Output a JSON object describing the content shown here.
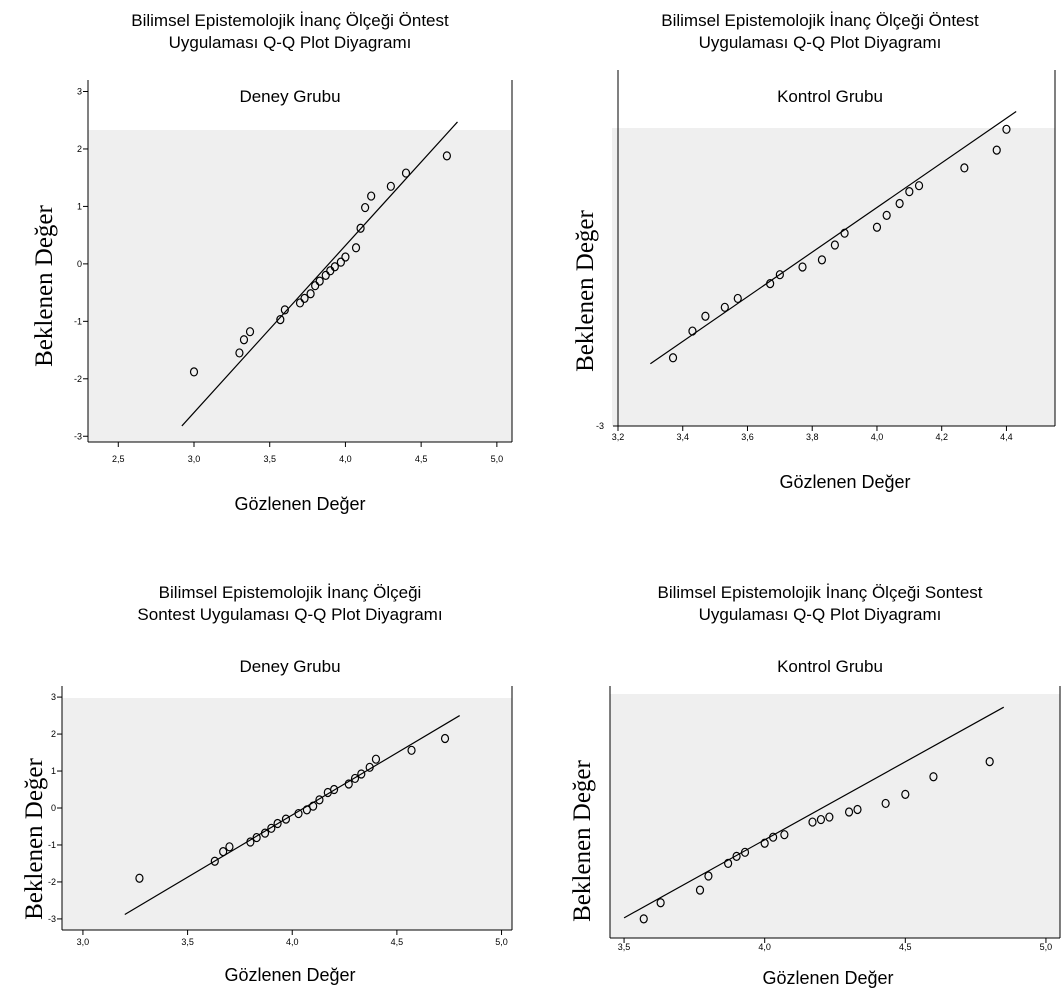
{
  "chart_data": [
    {
      "type": "scatter",
      "title_line1": "Bilimsel Epistemolojik İnanç Ölçeği Öntest",
      "title_line2": "Uygulaması Q-Q Plot Diyagramı",
      "group": "Deney Grubu",
      "xlabel": "Gözlenen Değer",
      "ylabel": "Beklenen Değer",
      "xlim": [
        2.3,
        5.1
      ],
      "ylim": [
        -3.1,
        3.2
      ],
      "xticks": [
        "2,5",
        "3,0",
        "3,5",
        "4,0",
        "4,5",
        "5,0"
      ],
      "xtick_values": [
        2.5,
        3.0,
        3.5,
        4.0,
        4.5,
        5.0
      ],
      "yticks": [
        "3",
        "2",
        "1",
        "0",
        "-1",
        "-2",
        "-3"
      ],
      "ytick_values": [
        3,
        2,
        1,
        0,
        -1,
        -2,
        -3
      ],
      "line": [
        [
          2.92,
          -2.82
        ],
        [
          4.74,
          2.47
        ]
      ],
      "points": [
        [
          3.0,
          -1.88
        ],
        [
          3.3,
          -1.55
        ],
        [
          3.33,
          -1.32
        ],
        [
          3.37,
          -1.18
        ],
        [
          3.57,
          -0.97
        ],
        [
          3.6,
          -0.8
        ],
        [
          3.7,
          -0.68
        ],
        [
          3.73,
          -0.6
        ],
        [
          3.77,
          -0.52
        ],
        [
          3.8,
          -0.38
        ],
        [
          3.83,
          -0.3
        ],
        [
          3.87,
          -0.2
        ],
        [
          3.9,
          -0.12
        ],
        [
          3.93,
          -0.05
        ],
        [
          3.97,
          0.03
        ],
        [
          4.0,
          0.12
        ],
        [
          4.07,
          0.28
        ],
        [
          4.1,
          0.62
        ],
        [
          4.13,
          0.98
        ],
        [
          4.17,
          1.18
        ],
        [
          4.3,
          1.35
        ],
        [
          4.4,
          1.58
        ],
        [
          4.67,
          1.88
        ]
      ]
    },
    {
      "type": "scatter",
      "title_line1": "Bilimsel Epistemolojik İnanç Ölçeği Öntest",
      "title_line2": "Uygulaması Q-Q Plot Diyagramı",
      "group": "Kontrol Grubu",
      "xlabel": "Gözlenen Değer",
      "ylabel": "Beklenen Değer",
      "xlim": [
        3.2,
        4.55
      ],
      "ylim": [
        -3.0,
        3.0
      ],
      "xticks": [
        "3,2",
        "3,4",
        "3,6",
        "3,8",
        "4,0",
        "4,2",
        "4,4"
      ],
      "xtick_values": [
        3.2,
        3.4,
        3.6,
        3.8,
        4.0,
        4.2,
        4.4
      ],
      "yticks": [
        "-3"
      ],
      "ytick_values": [
        -3
      ],
      "line": [
        [
          3.3,
          -1.95
        ],
        [
          4.43,
          2.3
        ]
      ],
      "points": [
        [
          3.37,
          -1.85
        ],
        [
          3.43,
          -1.4
        ],
        [
          3.47,
          -1.15
        ],
        [
          3.53,
          -1.0
        ],
        [
          3.57,
          -0.85
        ],
        [
          3.67,
          -0.6
        ],
        [
          3.7,
          -0.45
        ],
        [
          3.77,
          -0.32
        ],
        [
          3.83,
          -0.2
        ],
        [
          3.87,
          0.05
        ],
        [
          3.9,
          0.25
        ],
        [
          4.0,
          0.35
        ],
        [
          4.03,
          0.55
        ],
        [
          4.07,
          0.75
        ],
        [
          4.1,
          0.95
        ],
        [
          4.13,
          1.05
        ],
        [
          4.27,
          1.35
        ],
        [
          4.37,
          1.65
        ],
        [
          4.4,
          2.0
        ]
      ]
    },
    {
      "type": "scatter",
      "title_line1": "Bilimsel Epistemolojik İnanç Ölçeği",
      "title_line2": "Sontest Uygulaması Q-Q Plot Diyagramı",
      "group": "Deney Grubu",
      "xlabel": "Gözlenen Değer",
      "ylabel": "Beklenen Değer",
      "xlim": [
        2.9,
        5.05
      ],
      "ylim": [
        -3.3,
        3.3
      ],
      "xticks": [
        "3,0",
        "3,5",
        "4,0",
        "4,5",
        "5,0"
      ],
      "xtick_values": [
        3.0,
        3.5,
        4.0,
        4.5,
        5.0
      ],
      "yticks": [
        "3",
        "2",
        "1",
        "0",
        "-1",
        "-2",
        "-3"
      ],
      "ytick_values": [
        3,
        2,
        1,
        0,
        -1,
        -2,
        -3
      ],
      "line": [
        [
          3.2,
          -2.88
        ],
        [
          4.8,
          2.5
        ]
      ],
      "points": [
        [
          3.27,
          -1.9
        ],
        [
          3.63,
          -1.44
        ],
        [
          3.67,
          -1.18
        ],
        [
          3.7,
          -1.05
        ],
        [
          3.8,
          -0.92
        ],
        [
          3.83,
          -0.8
        ],
        [
          3.87,
          -0.68
        ],
        [
          3.9,
          -0.55
        ],
        [
          3.93,
          -0.42
        ],
        [
          3.97,
          -0.3
        ],
        [
          4.03,
          -0.15
        ],
        [
          4.07,
          -0.05
        ],
        [
          4.1,
          0.05
        ],
        [
          4.13,
          0.22
        ],
        [
          4.17,
          0.42
        ],
        [
          4.2,
          0.5
        ],
        [
          4.27,
          0.65
        ],
        [
          4.3,
          0.8
        ],
        [
          4.33,
          0.92
        ],
        [
          4.37,
          1.1
        ],
        [
          4.4,
          1.32
        ],
        [
          4.57,
          1.56
        ],
        [
          4.73,
          1.88
        ]
      ]
    },
    {
      "type": "scatter",
      "title_line1": "Bilimsel Epistemolojik İnanç Ölçeği Sontest",
      "title_line2": "Uygulaması Q-Q Plot Diyagramı",
      "group": "Kontrol  Grubu",
      "xlabel": "Gözlenen Değer",
      "ylabel": "Beklenen Değer",
      "xlim": [
        3.45,
        5.05
      ],
      "ylim": [
        -2.5,
        2.5
      ],
      "xticks": [
        "3,5",
        "4,0",
        "4,5",
        "5,0"
      ],
      "xtick_values": [
        3.5,
        4.0,
        4.5,
        5.0
      ],
      "yticks": [],
      "ytick_values": [],
      "line": [
        [
          3.5,
          -2.1
        ],
        [
          4.85,
          2.08
        ]
      ],
      "points": [
        [
          3.57,
          -2.12
        ],
        [
          3.63,
          -1.8
        ],
        [
          3.77,
          -1.55
        ],
        [
          3.8,
          -1.27
        ],
        [
          3.87,
          -1.02
        ],
        [
          3.9,
          -0.88
        ],
        [
          3.93,
          -0.8
        ],
        [
          4.0,
          -0.62
        ],
        [
          4.03,
          -0.5
        ],
        [
          4.07,
          -0.45
        ],
        [
          4.17,
          -0.2
        ],
        [
          4.2,
          -0.15
        ],
        [
          4.23,
          -0.1
        ],
        [
          4.3,
          0.0
        ],
        [
          4.33,
          0.05
        ],
        [
          4.43,
          0.17
        ],
        [
          4.5,
          0.35
        ],
        [
          4.6,
          0.7
        ],
        [
          4.8,
          1.0
        ]
      ]
    }
  ]
}
